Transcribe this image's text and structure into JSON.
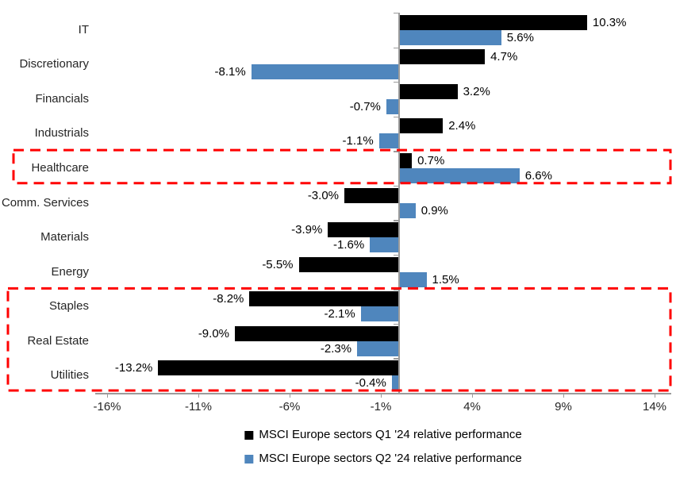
{
  "chart_data": {
    "type": "bar",
    "orientation": "horizontal",
    "title": "",
    "categories": [
      "IT",
      "Discretionary",
      "Financials",
      "Industrials",
      "Healthcare",
      "Comm. Services",
      "Materials",
      "Energy",
      "Staples",
      "Real Estate",
      "Utilities"
    ],
    "series": [
      {
        "name": "MSCI Europe sectors Q1 '24 relative performance",
        "color": "#000000",
        "values": [
          10.3,
          4.7,
          3.2,
          2.4,
          0.7,
          -3.0,
          -3.9,
          -5.5,
          -8.2,
          -9.0,
          -13.2
        ]
      },
      {
        "name": "MSCI Europe sectors Q2 '24 relative performance",
        "color": "#4F86BD",
        "values": [
          5.6,
          -8.1,
          -0.7,
          -1.1,
          6.6,
          0.9,
          -1.6,
          1.5,
          -2.1,
          -2.3,
          -0.4
        ]
      }
    ],
    "value_labels": {
      "series_0": [
        "10.3%",
        "4.7%",
        "3.2%",
        "2.4%",
        "0.7%",
        "-3.0%",
        "-3.9%",
        "-5.5%",
        "-8.2%",
        "-9.0%",
        "-13.2%"
      ],
      "series_1": [
        "5.6%",
        "-8.1%",
        "-0.7%",
        "-1.1%",
        "6.6%",
        "0.9%",
        "-1.6%",
        "1.5%",
        "-2.1%",
        "-2.3%",
        "-0.4%"
      ]
    },
    "x_axis": {
      "ticks": [
        -16,
        -11,
        -6,
        -1,
        4,
        9,
        14
      ],
      "tick_labels": [
        "-16%",
        "-11%",
        "-6%",
        "-1%",
        "4%",
        "9%",
        "14%"
      ],
      "range": [
        -16.7,
        14.9
      ],
      "unit": "%"
    },
    "grid": false,
    "legend_position": "bottom-center",
    "axis_color": "#9b9b9b",
    "highlights": [
      {
        "type": "dashed-box",
        "color": "#FF0000",
        "categories": [
          "Healthcare"
        ]
      },
      {
        "type": "dashed-box",
        "color": "#FF0000",
        "categories": [
          "Staples",
          "Real Estate",
          "Utilities"
        ]
      }
    ]
  }
}
